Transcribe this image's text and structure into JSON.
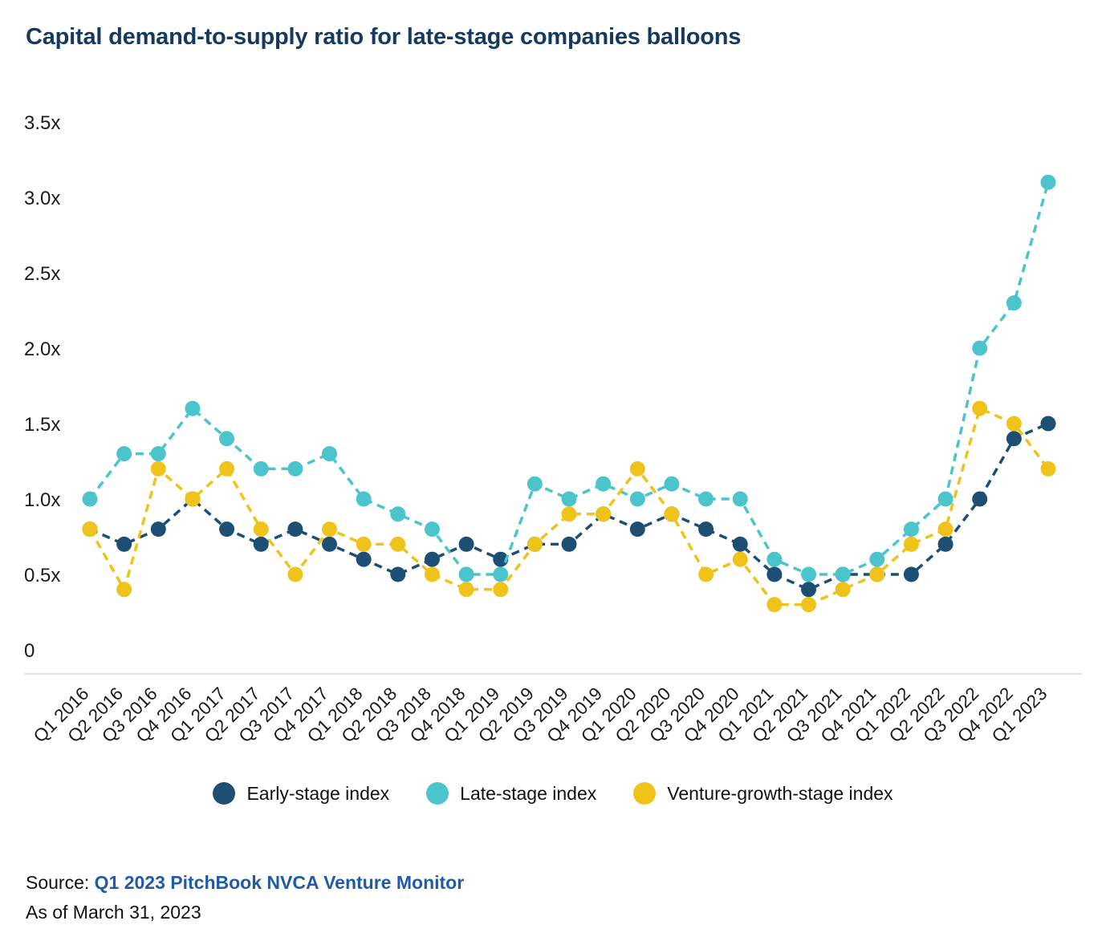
{
  "title": "Capital demand-to-supply ratio for late-stage companies balloons",
  "chart_data": {
    "type": "line",
    "title": "Capital demand-to-supply ratio for late-stage companies balloons",
    "x": [
      "Q1 2016",
      "Q2 2016",
      "Q3 2016",
      "Q4 2016",
      "Q1 2017",
      "Q2 2017",
      "Q3 2017",
      "Q4 2017",
      "Q1 2018",
      "Q2 2018",
      "Q3 2018",
      "Q4 2018",
      "Q1 2019",
      "Q2 2019",
      "Q3 2019",
      "Q4 2019",
      "Q1 2020",
      "Q2 2020",
      "Q3 2020",
      "Q4 2020",
      "Q1 2021",
      "Q2 2021",
      "Q3 2021",
      "Q4 2021",
      "Q1 2022",
      "Q2 2022",
      "Q3 2022",
      "Q4 2022",
      "Q1 2023"
    ],
    "series": [
      {
        "name": "Early-stage index",
        "color": "#1d4e74",
        "values": [
          0.8,
          0.7,
          0.8,
          1.0,
          0.8,
          0.7,
          0.8,
          0.7,
          0.6,
          0.5,
          0.6,
          0.7,
          0.6,
          0.7,
          0.7,
          0.9,
          0.8,
          0.9,
          0.8,
          0.7,
          0.5,
          0.4,
          0.5,
          0.5,
          0.5,
          0.7,
          1.0,
          1.4,
          1.5
        ]
      },
      {
        "name": "Late-stage index",
        "color": "#4bc4cb",
        "values": [
          1.0,
          1.3,
          1.3,
          1.6,
          1.4,
          1.2,
          1.2,
          1.3,
          1.0,
          0.9,
          0.8,
          0.5,
          0.5,
          1.1,
          1.0,
          1.1,
          1.0,
          1.1,
          1.0,
          1.0,
          0.6,
          0.5,
          0.5,
          0.6,
          0.8,
          1.0,
          2.0,
          2.3,
          3.1
        ]
      },
      {
        "name": "Venture-growth-stage index",
        "color": "#efc319",
        "values": [
          0.8,
          0.4,
          1.2,
          1.0,
          1.2,
          0.8,
          0.5,
          0.8,
          0.7,
          0.7,
          0.5,
          0.4,
          0.4,
          0.7,
          0.9,
          0.9,
          1.2,
          0.9,
          0.5,
          0.6,
          0.3,
          0.3,
          0.4,
          0.5,
          0.7,
          0.8,
          1.6,
          1.5,
          1.2
        ]
      }
    ],
    "ytick_values": [
      0,
      0.5,
      1.0,
      1.5,
      2.0,
      2.5,
      3.0,
      3.5
    ],
    "ytick_labels": [
      "0",
      "0.5x",
      "1.0x",
      "1.5x",
      "2.0x",
      "2.5x",
      "3.0x",
      "3.5x"
    ],
    "ylim": [
      0,
      3.5
    ],
    "xlabel": "",
    "ylabel": "",
    "grid": false,
    "line_style": "dashed",
    "marker": "circle",
    "legend_position": "bottom"
  },
  "source": {
    "prefix": "Source: ",
    "link": "Q1 2023 PitchBook NVCA Venture Monitor",
    "as_of": "As of March 31, 2023"
  },
  "colors": {
    "title": "#16395f",
    "link": "#1f5ba7",
    "axis_line": "#d8d8d8",
    "tick_text": "#1a1a1a"
  }
}
